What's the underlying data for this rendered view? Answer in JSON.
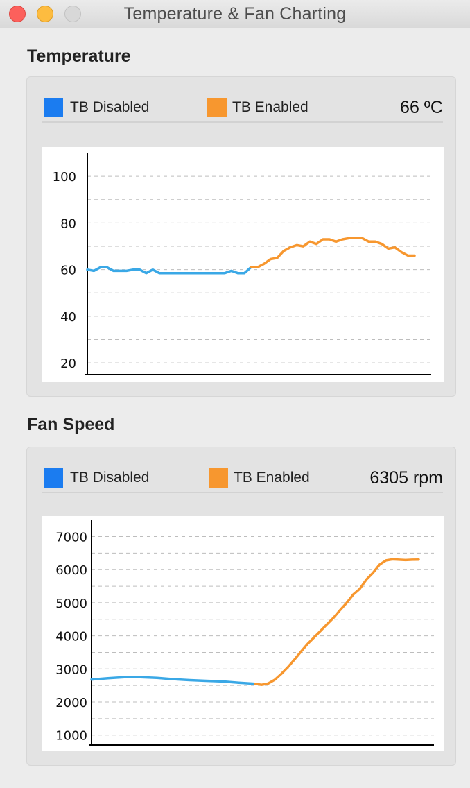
{
  "window": {
    "title": "Temperature & Fan Charting"
  },
  "colors": {
    "disabled": "#3aa8e6",
    "disabled_swatch": "#1b7cf0",
    "enabled": "#f7972f",
    "enabled_swatch": "#f7972f"
  },
  "temperature": {
    "section_title": "Temperature",
    "legend": [
      {
        "label": "TB Disabled"
      },
      {
        "label": "TB Enabled"
      }
    ],
    "readout": "66 ºC",
    "chart_data": {
      "type": "line",
      "ylim": [
        15,
        106
      ],
      "yticks": [
        100,
        80,
        60,
        40,
        20
      ],
      "ytick_labels": [
        "100",
        "80",
        "60",
        "40",
        "20"
      ],
      "grid": true,
      "series": [
        {
          "name": "TB Disabled",
          "x": [
            0,
            2,
            4,
            6,
            8,
            10,
            12,
            14,
            16,
            18,
            20,
            22,
            24,
            26,
            28,
            30,
            32,
            34,
            36,
            38,
            40,
            42,
            44,
            46,
            48,
            50
          ],
          "y": [
            60,
            59.5,
            61,
            61,
            59.5,
            59.5,
            59.5,
            60,
            60,
            58.5,
            60,
            58.5,
            58.5,
            58.5,
            58.5,
            58.5,
            58.5,
            58.5,
            58.5,
            58.5,
            58.5,
            58.5,
            59.5,
            58.5,
            58.5,
            61
          ]
        },
        {
          "name": "TB Enabled",
          "x": [
            50,
            52,
            54,
            56,
            58,
            60,
            62,
            64,
            66,
            68,
            70,
            72,
            74,
            76,
            78,
            80,
            82,
            84,
            86,
            88,
            90,
            92,
            94,
            96,
            98,
            100
          ],
          "y": [
            61,
            61,
            62.5,
            64.5,
            65,
            68,
            69.5,
            70.5,
            70,
            72,
            71,
            73,
            73,
            72,
            73,
            73.5,
            73.5,
            73.5,
            72,
            72,
            71,
            69,
            69.5,
            67.5,
            66,
            66
          ]
        }
      ]
    }
  },
  "fan": {
    "section_title": "Fan Speed",
    "legend": [
      {
        "label": "TB Disabled"
      },
      {
        "label": "TB Enabled"
      }
    ],
    "readout": "6305 rpm",
    "chart_data": {
      "type": "line",
      "ylim": [
        700,
        7200
      ],
      "yticks": [
        7000,
        6000,
        5000,
        4000,
        3000,
        2000,
        1000
      ],
      "ytick_labels": [
        "7000",
        "6000",
        "5000",
        "4000",
        "3000",
        "2000",
        "1000"
      ],
      "grid": true,
      "series": [
        {
          "name": "TB Disabled",
          "x": [
            0,
            5,
            10,
            15,
            20,
            25,
            30,
            35,
            40,
            45,
            50
          ],
          "y": [
            2680,
            2720,
            2750,
            2750,
            2730,
            2690,
            2660,
            2640,
            2620,
            2580,
            2550
          ]
        },
        {
          "name": "TB Enabled",
          "x": [
            50,
            52,
            54,
            56,
            58,
            60,
            62,
            64,
            66,
            68,
            70,
            72,
            74,
            76,
            78,
            80,
            82,
            84,
            86,
            88,
            90,
            92,
            94,
            96,
            98,
            100
          ],
          "y": [
            2550,
            2520,
            2560,
            2670,
            2850,
            3050,
            3280,
            3520,
            3750,
            3950,
            4150,
            4350,
            4550,
            4780,
            5000,
            5250,
            5420,
            5700,
            5900,
            6150,
            6280,
            6310,
            6300,
            6290,
            6300,
            6305
          ]
        }
      ]
    }
  }
}
